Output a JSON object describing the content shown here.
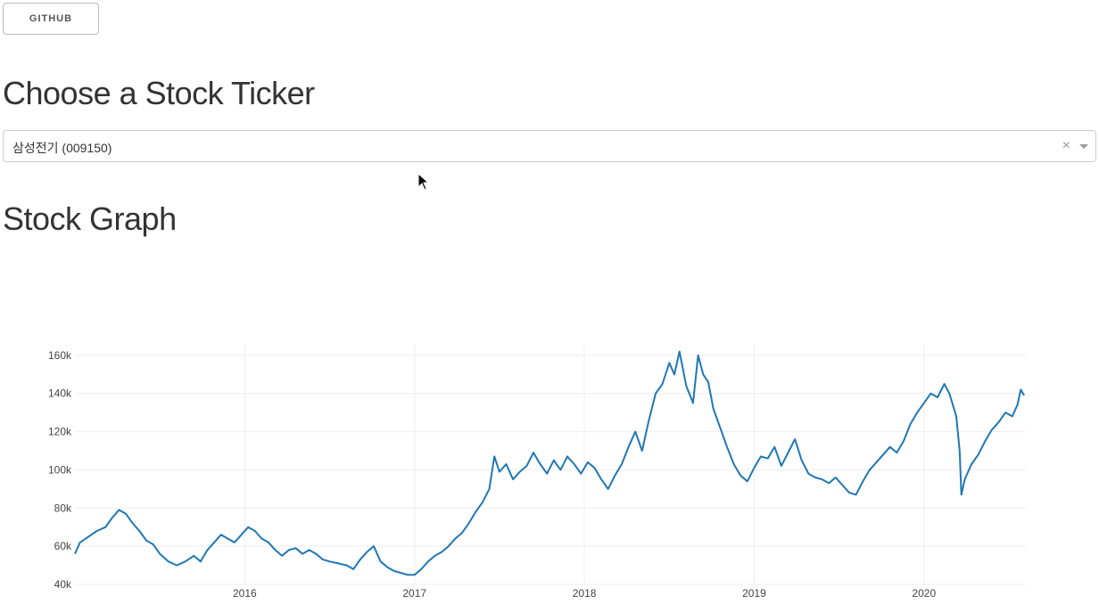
{
  "header": {
    "github_label": "GITHUB"
  },
  "ticker_section": {
    "title": "Choose a Stock Ticker",
    "selected_value": "삼성전기 (009150)",
    "clear_glyph": "×"
  },
  "graph_section": {
    "title": "Stock Graph"
  },
  "colors": {
    "line": "#1f77b4",
    "grid": "#eeeeee",
    "text": "#444444"
  },
  "chart_data": {
    "type": "line",
    "title": "",
    "xlabel": "",
    "ylabel": "",
    "x_ticks": [
      "2016",
      "2017",
      "2018",
      "2019",
      "2020"
    ],
    "y_ticks": [
      "40k",
      "60k",
      "80k",
      "100k",
      "120k",
      "140k",
      "160k"
    ],
    "ylim": [
      40000,
      166000
    ],
    "xlim": [
      2015.0,
      2020.6
    ],
    "grid": true,
    "series": [
      {
        "values": [
          [
            2015.0,
            56000
          ],
          [
            2015.03,
            62000
          ],
          [
            2015.08,
            65000
          ],
          [
            2015.13,
            68000
          ],
          [
            2015.18,
            70000
          ],
          [
            2015.22,
            75000
          ],
          [
            2015.26,
            79000
          ],
          [
            2015.3,
            77000
          ],
          [
            2015.34,
            72000
          ],
          [
            2015.38,
            68000
          ],
          [
            2015.42,
            63000
          ],
          [
            2015.46,
            61000
          ],
          [
            2015.5,
            56000
          ],
          [
            2015.55,
            52000
          ],
          [
            2015.6,
            50000
          ],
          [
            2015.65,
            52000
          ],
          [
            2015.7,
            55000
          ],
          [
            2015.74,
            52000
          ],
          [
            2015.78,
            58000
          ],
          [
            2015.82,
            62000
          ],
          [
            2015.86,
            66000
          ],
          [
            2015.9,
            64000
          ],
          [
            2015.94,
            62000
          ],
          [
            2015.98,
            66000
          ],
          [
            2016.02,
            70000
          ],
          [
            2016.06,
            68000
          ],
          [
            2016.1,
            64000
          ],
          [
            2016.14,
            62000
          ],
          [
            2016.18,
            58000
          ],
          [
            2016.22,
            55000
          ],
          [
            2016.26,
            58000
          ],
          [
            2016.3,
            59000
          ],
          [
            2016.34,
            56000
          ],
          [
            2016.38,
            58000
          ],
          [
            2016.42,
            56000
          ],
          [
            2016.46,
            53000
          ],
          [
            2016.5,
            52000
          ],
          [
            2016.55,
            51000
          ],
          [
            2016.6,
            50000
          ],
          [
            2016.64,
            48000
          ],
          [
            2016.68,
            53000
          ],
          [
            2016.72,
            57000
          ],
          [
            2016.76,
            60000
          ],
          [
            2016.8,
            52000
          ],
          [
            2016.84,
            49000
          ],
          [
            2016.88,
            47000
          ],
          [
            2016.92,
            46000
          ],
          [
            2016.96,
            45000
          ],
          [
            2017.0,
            45000
          ],
          [
            2017.04,
            48000
          ],
          [
            2017.08,
            52000
          ],
          [
            2017.12,
            55000
          ],
          [
            2017.16,
            57000
          ],
          [
            2017.2,
            60000
          ],
          [
            2017.24,
            64000
          ],
          [
            2017.28,
            67000
          ],
          [
            2017.32,
            72000
          ],
          [
            2017.36,
            78000
          ],
          [
            2017.4,
            83000
          ],
          [
            2017.44,
            90000
          ],
          [
            2017.47,
            107000
          ],
          [
            2017.5,
            99000
          ],
          [
            2017.54,
            103000
          ],
          [
            2017.58,
            95000
          ],
          [
            2017.62,
            99000
          ],
          [
            2017.66,
            102000
          ],
          [
            2017.7,
            109000
          ],
          [
            2017.74,
            103000
          ],
          [
            2017.78,
            98000
          ],
          [
            2017.82,
            105000
          ],
          [
            2017.86,
            100000
          ],
          [
            2017.9,
            107000
          ],
          [
            2017.94,
            103000
          ],
          [
            2017.98,
            98000
          ],
          [
            2018.02,
            104000
          ],
          [
            2018.06,
            101000
          ],
          [
            2018.1,
            95000
          ],
          [
            2018.14,
            90000
          ],
          [
            2018.18,
            97000
          ],
          [
            2018.22,
            103000
          ],
          [
            2018.26,
            112000
          ],
          [
            2018.3,
            120000
          ],
          [
            2018.34,
            110000
          ],
          [
            2018.38,
            126000
          ],
          [
            2018.42,
            140000
          ],
          [
            2018.46,
            145000
          ],
          [
            2018.5,
            156000
          ],
          [
            2018.53,
            150000
          ],
          [
            2018.56,
            162000
          ],
          [
            2018.6,
            144000
          ],
          [
            2018.64,
            135000
          ],
          [
            2018.67,
            160000
          ],
          [
            2018.7,
            150000
          ],
          [
            2018.73,
            146000
          ],
          [
            2018.76,
            132000
          ],
          [
            2018.8,
            122000
          ],
          [
            2018.84,
            112000
          ],
          [
            2018.88,
            103000
          ],
          [
            2018.92,
            97000
          ],
          [
            2018.96,
            94000
          ],
          [
            2019.0,
            101000
          ],
          [
            2019.04,
            107000
          ],
          [
            2019.08,
            106000
          ],
          [
            2019.12,
            112000
          ],
          [
            2019.16,
            102000
          ],
          [
            2019.2,
            109000
          ],
          [
            2019.24,
            116000
          ],
          [
            2019.28,
            105000
          ],
          [
            2019.32,
            98000
          ],
          [
            2019.36,
            96000
          ],
          [
            2019.4,
            95000
          ],
          [
            2019.44,
            93000
          ],
          [
            2019.48,
            96000
          ],
          [
            2019.52,
            92000
          ],
          [
            2019.56,
            88000
          ],
          [
            2019.6,
            87000
          ],
          [
            2019.64,
            94000
          ],
          [
            2019.68,
            100000
          ],
          [
            2019.72,
            104000
          ],
          [
            2019.76,
            108000
          ],
          [
            2019.8,
            112000
          ],
          [
            2019.84,
            109000
          ],
          [
            2019.88,
            115000
          ],
          [
            2019.92,
            124000
          ],
          [
            2019.96,
            130000
          ],
          [
            2020.0,
            135000
          ],
          [
            2020.04,
            140000
          ],
          [
            2020.08,
            138000
          ],
          [
            2020.12,
            145000
          ],
          [
            2020.15,
            140000
          ],
          [
            2020.19,
            128000
          ],
          [
            2020.21,
            110000
          ],
          [
            2020.22,
            87000
          ],
          [
            2020.24,
            95000
          ],
          [
            2020.28,
            103000
          ],
          [
            2020.32,
            108000
          ],
          [
            2020.36,
            115000
          ],
          [
            2020.4,
            121000
          ],
          [
            2020.44,
            125000
          ],
          [
            2020.48,
            130000
          ],
          [
            2020.52,
            128000
          ],
          [
            2020.55,
            134000
          ],
          [
            2020.57,
            142000
          ],
          [
            2020.59,
            139000
          ]
        ]
      }
    ]
  }
}
